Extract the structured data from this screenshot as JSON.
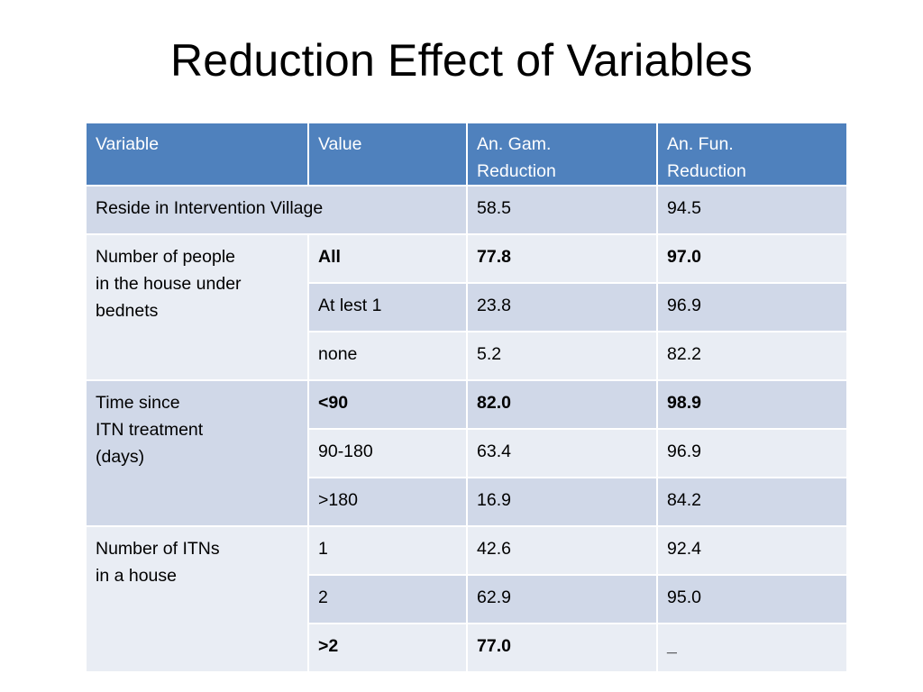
{
  "slide": {
    "title": "Reduction Effect of Variables"
  },
  "table": {
    "headers": {
      "variable": "Variable",
      "value": "Value",
      "gam_line1": "An. Gam.",
      "gam_line2": "Reduction",
      "fun_line1": "An. Fun.",
      "fun_line2": "Reduction"
    },
    "reside": {
      "label": "Reside in Intervention Village",
      "gam": "58.5",
      "fun": "94.5"
    },
    "people": {
      "label_line1": "Number of people",
      "label_line2": "in the house under",
      "label_line3": "bednets",
      "rows": [
        {
          "value": "All",
          "gam": "77.8",
          "fun": "97.0"
        },
        {
          "value": "At lest 1",
          "gam": "23.8",
          "fun": "96.9"
        },
        {
          "value": "none",
          "gam": "5.2",
          "fun": "82.2"
        }
      ]
    },
    "time": {
      "label_line1": "Time since",
      "label_line2": "ITN treatment",
      "label_line3": "(days)",
      "rows": [
        {
          "value": "<90",
          "gam": "82.0",
          "fun": "98.9"
        },
        {
          "value": "90-180",
          "gam": "63.4",
          "fun": "96.9"
        },
        {
          "value": ">180",
          "gam": "16.9",
          "fun": "84.2"
        }
      ]
    },
    "itns": {
      "label_line1": "Number of ITNs",
      "label_line2": "in a house",
      "rows": [
        {
          "value": "1",
          "gam": "42.6",
          "fun": "92.4"
        },
        {
          "value": "2",
          "gam": "62.9",
          "fun": "95.0"
        },
        {
          "value": ">2",
          "gam": "77.0",
          "fun": "_"
        }
      ]
    }
  }
}
